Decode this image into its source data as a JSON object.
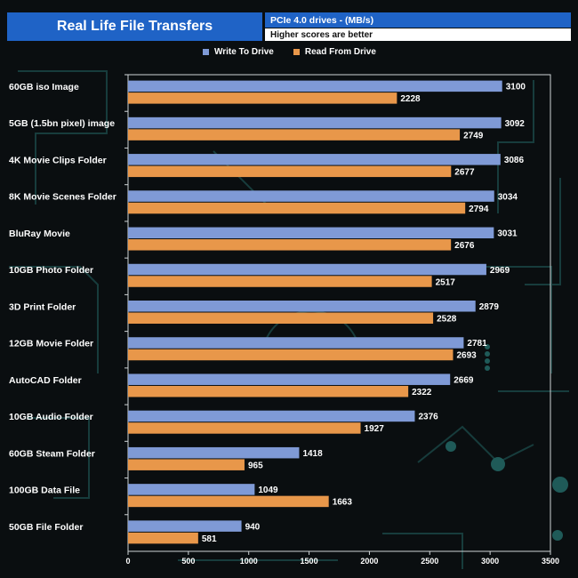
{
  "header": {
    "title": "Real Life File Transfers",
    "subtitle": "PCIe 4.0 drives - (MB/s)",
    "note": "Higher scores are better"
  },
  "colors": {
    "header_bg": "#1f63c6",
    "write": "#7f9ad6",
    "read": "#e8974a",
    "background": "#0a0e10",
    "decoration": "#1f5a58"
  },
  "chart_data": {
    "type": "bar",
    "orientation": "horizontal",
    "categories": [
      "60GB iso Image",
      "5GB (1.5bn pixel) image",
      "4K Movie Clips Folder",
      "8K Movie Scenes Folder",
      "BluRay Movie",
      "10GB Photo Folder",
      "3D Print Folder",
      "12GB Movie Folder",
      "AutoCAD Folder",
      "10GB Audio Folder",
      "60GB Steam Folder",
      "100GB Data File",
      "50GB File Folder"
    ],
    "series": [
      {
        "name": "Write To  Drive",
        "values": [
          3100,
          3092,
          3086,
          3034,
          3031,
          2969,
          2879,
          2781,
          2669,
          2376,
          1418,
          1049,
          940
        ]
      },
      {
        "name": "Read From  Drive",
        "values": [
          2228,
          2749,
          2677,
          2794,
          2676,
          2517,
          2528,
          2693,
          2322,
          1927,
          965,
          1663,
          581
        ]
      }
    ],
    "xlim": [
      0,
      3500
    ],
    "xticks": [
      0,
      500,
      1000,
      1500,
      2000,
      2500,
      3000,
      3500
    ],
    "legend_position": "top",
    "grid": false
  }
}
